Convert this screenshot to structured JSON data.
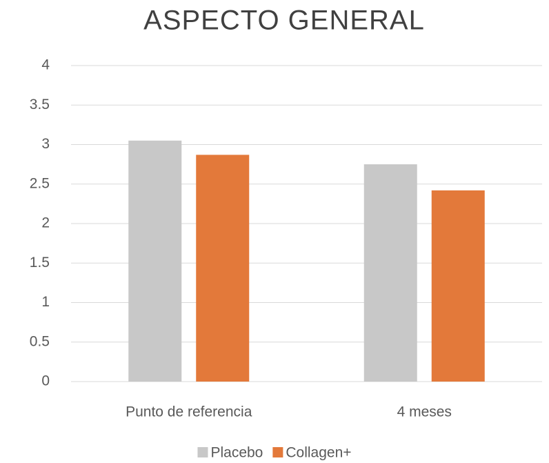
{
  "chart_data": {
    "type": "bar",
    "title": "ASPECTO GENERAL",
    "categories": [
      "Punto de referencia",
      "4 meses"
    ],
    "series": [
      {
        "name": "Placebo",
        "color": "#c8c8c8",
        "values": [
          3.05,
          2.75
        ]
      },
      {
        "name": "Collagen+",
        "color": "#e3793a",
        "values": [
          2.87,
          2.42
        ]
      }
    ],
    "ylim": [
      0,
      4
    ],
    "yticks": [
      0,
      0.5,
      1,
      1.5,
      2,
      2.5,
      3,
      3.5,
      4
    ],
    "grid": true,
    "legend": "bottom"
  }
}
